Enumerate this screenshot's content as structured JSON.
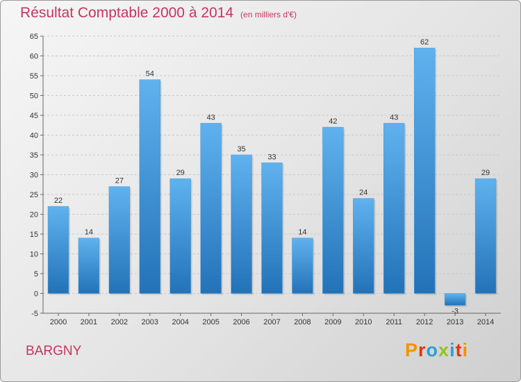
{
  "title": "Résultat Comptable 2000 à 2014",
  "unit_note": "(en milliers d'€)",
  "town": "BARGNY",
  "logo": {
    "text": "Proxiti",
    "letter_colors": [
      "#f39200",
      "#e63312",
      "#2a9fd6",
      "#95c11f",
      "#2a9fd6",
      "#e63312",
      "#f39200"
    ]
  },
  "colors": {
    "title": "#c4365c",
    "bar_top": "#5fb2ee",
    "bar_bottom": "#2372b8",
    "grid": "#c8c8c8"
  },
  "chart_data": {
    "type": "bar",
    "title": "Résultat Comptable 2000 à 2014",
    "xlabel": "",
    "ylabel": "",
    "categories": [
      "2000",
      "2001",
      "2002",
      "2003",
      "2004",
      "2005",
      "2006",
      "2007",
      "2008",
      "2009",
      "2010",
      "2011",
      "2012",
      "2013",
      "2014"
    ],
    "values": [
      22,
      14,
      27,
      54,
      29,
      43,
      35,
      33,
      14,
      42,
      24,
      43,
      62,
      -3,
      29
    ],
    "ylim": [
      -5,
      65
    ],
    "yticks": [
      -5,
      0,
      5,
      10,
      15,
      20,
      25,
      30,
      35,
      40,
      45,
      50,
      55,
      60,
      65
    ],
    "grid": true,
    "legend": "none"
  }
}
